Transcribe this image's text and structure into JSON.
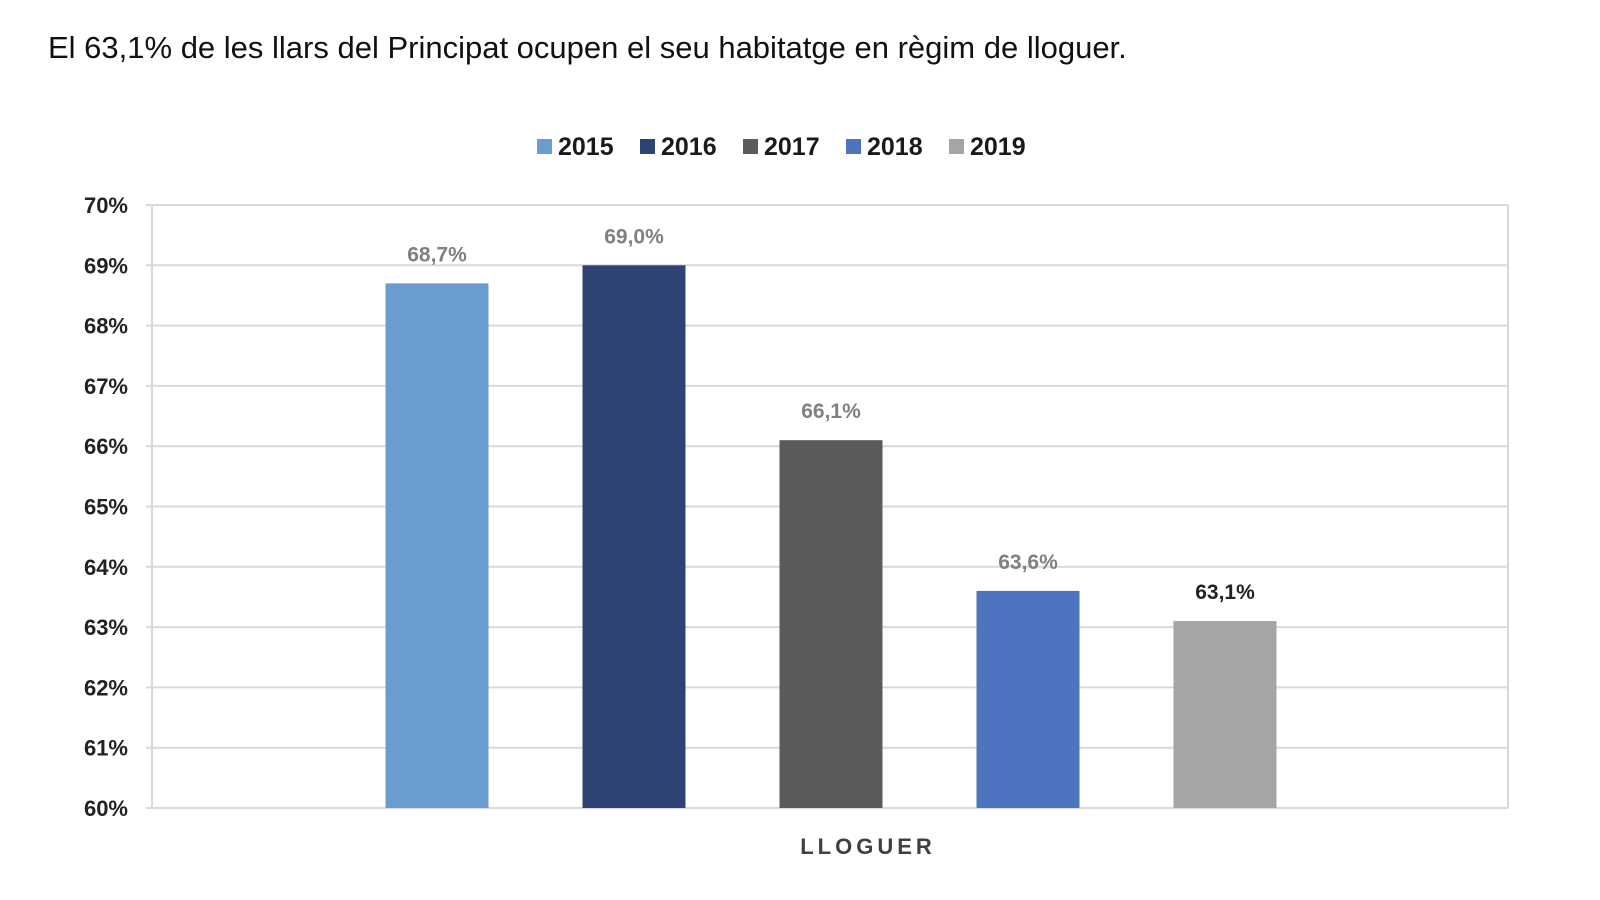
{
  "headline": "El 63,1% de les llars del Principat ocupen el seu habitatge en règim de lloguer.",
  "chart_data": {
    "type": "bar",
    "title": "",
    "categories": [
      "LLOGUER"
    ],
    "xlabel": "LLOGUER",
    "ylabel": "",
    "ylim": [
      60,
      70
    ],
    "yticks": [
      "60%",
      "61%",
      "62%",
      "63%",
      "64%",
      "65%",
      "66%",
      "67%",
      "68%",
      "69%",
      "70%"
    ],
    "grid": true,
    "legend_position": "top-center",
    "series": [
      {
        "name": "2015",
        "values": [
          68.7
        ],
        "label": "68,7%",
        "color": "#6a9ccf",
        "label_color": "#808080"
      },
      {
        "name": "2016",
        "values": [
          69.0
        ],
        "label": "69,0%",
        "color": "#2e4374",
        "label_color": "#808080"
      },
      {
        "name": "2017",
        "values": [
          66.1
        ],
        "label": "66,1%",
        "color": "#5b5b5b",
        "label_color": "#808080"
      },
      {
        "name": "2018",
        "values": [
          63.6
        ],
        "label": "63,6%",
        "color": "#4e74c0",
        "label_color": "#808080"
      },
      {
        "name": "2019",
        "values": [
          63.1
        ],
        "label": "63,1%",
        "color": "#a5a5a5",
        "label_color": "#222222"
      }
    ]
  }
}
